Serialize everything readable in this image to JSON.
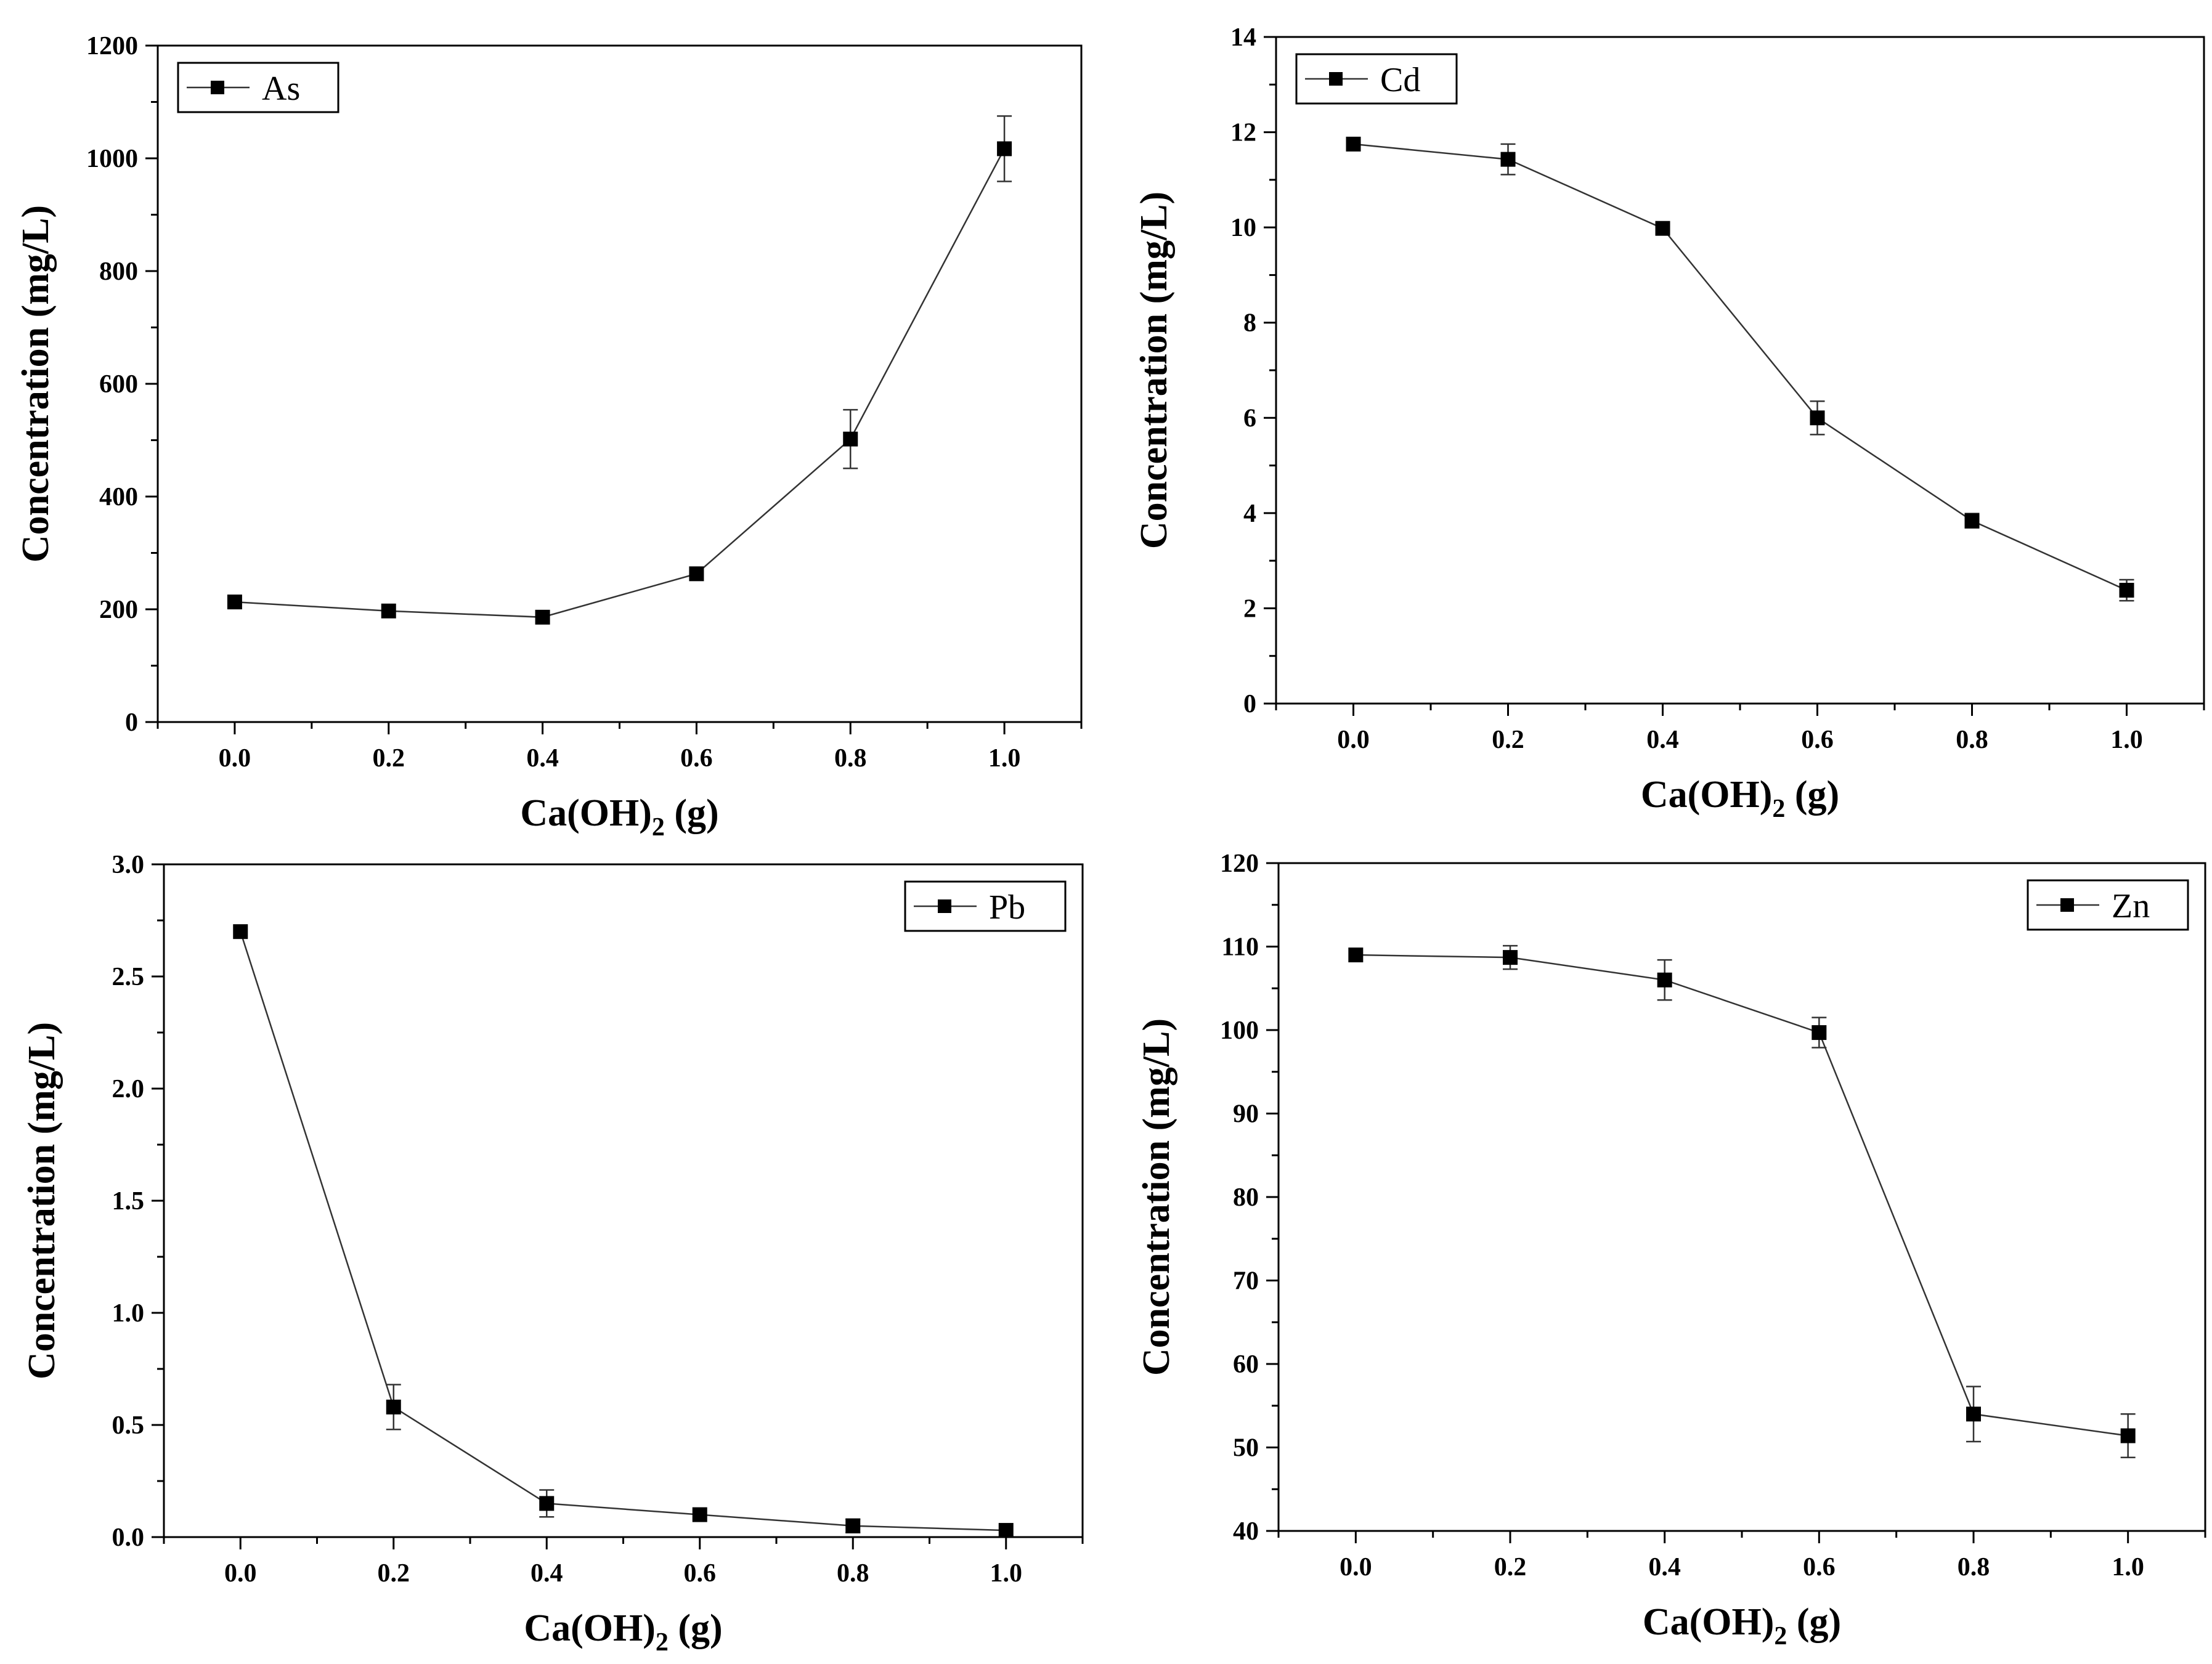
{
  "chart_data": [
    {
      "type": "line",
      "legend": "As",
      "legend_position": "top-left",
      "xlabel_main": "Ca(OH)",
      "xlabel_sub": "2",
      "xlabel_unit": "(g)",
      "ylabel": "Concentration (mg/L)",
      "xlim": [
        -0.1,
        1.1
      ],
      "ylim": [
        0,
        1200
      ],
      "xticks": [
        0.0,
        0.2,
        0.4,
        0.6,
        0.8,
        1.0
      ],
      "xtick_labels": [
        "0.0",
        "0.2",
        "0.4",
        "0.6",
        "0.8",
        "1.0"
      ],
      "yticks": [
        0,
        200,
        400,
        600,
        800,
        1000,
        1200
      ],
      "ytick_labels": [
        "0",
        "200",
        "400",
        "600",
        "800",
        "1000",
        "1200"
      ],
      "x": [
        0.0,
        0.2,
        0.4,
        0.6,
        0.8,
        1.0
      ],
      "y": [
        213,
        197,
        186,
        263,
        502,
        1017
      ],
      "err": [
        0,
        0,
        0,
        0,
        52,
        58
      ]
    },
    {
      "type": "line",
      "legend": "Cd",
      "legend_position": "top-left",
      "xlabel_main": "Ca(OH)",
      "xlabel_sub": "2",
      "xlabel_unit": "(g)",
      "ylabel": "Concentration (mg/L)",
      "xlim": [
        -0.1,
        1.1
      ],
      "ylim": [
        0,
        14
      ],
      "xticks": [
        0.0,
        0.2,
        0.4,
        0.6,
        0.8,
        1.0
      ],
      "xtick_labels": [
        "0.0",
        "0.2",
        "0.4",
        "0.6",
        "0.8",
        "1.0"
      ],
      "yticks": [
        0,
        2,
        4,
        6,
        8,
        10,
        12,
        14
      ],
      "ytick_labels": [
        "0",
        "2",
        "4",
        "6",
        "8",
        "10",
        "12",
        "14"
      ],
      "x": [
        0.0,
        0.2,
        0.4,
        0.6,
        0.8,
        1.0
      ],
      "y": [
        11.75,
        11.43,
        9.98,
        6.0,
        3.84,
        2.38
      ],
      "err": [
        0,
        0.32,
        0,
        0.35,
        0.15,
        0.22
      ]
    },
    {
      "type": "line",
      "legend": "Pb",
      "legend_position": "top-right",
      "xlabel_main": "Ca(OH)",
      "xlabel_sub": "2",
      "xlabel_unit": "(g)",
      "ylabel": "Concentration (mg/L)",
      "xlim": [
        -0.1,
        1.1
      ],
      "ylim": [
        0,
        3.0
      ],
      "xticks": [
        0.0,
        0.2,
        0.4,
        0.6,
        0.8,
        1.0
      ],
      "xtick_labels": [
        "0.0",
        "0.2",
        "0.4",
        "0.6",
        "0.8",
        "1.0"
      ],
      "yticks": [
        0,
        0.5,
        1.0,
        1.5,
        2.0,
        2.5,
        3.0
      ],
      "ytick_labels": [
        "0.0",
        "0.5",
        "1.0",
        "1.5",
        "2.0",
        "2.5",
        "3.0"
      ],
      "x": [
        0.0,
        0.2,
        0.4,
        0.6,
        0.8,
        1.0
      ],
      "y": [
        2.7,
        0.58,
        0.15,
        0.1,
        0.05,
        0.03
      ],
      "err": [
        0,
        0.1,
        0.06,
        0,
        0.03,
        0
      ]
    },
    {
      "type": "line",
      "legend": "Zn",
      "legend_position": "top-right",
      "xlabel_main": "Ca(OH)",
      "xlabel_sub": "2",
      "xlabel_unit": "(g)",
      "ylabel": "Concentration (mg/L)",
      "xlim": [
        -0.1,
        1.1
      ],
      "ylim": [
        40,
        120
      ],
      "xticks": [
        0.0,
        0.2,
        0.4,
        0.6,
        0.8,
        1.0
      ],
      "xtick_labels": [
        "0.0",
        "0.2",
        "0.4",
        "0.6",
        "0.8",
        "1.0"
      ],
      "yticks": [
        40,
        50,
        60,
        70,
        80,
        90,
        100,
        110,
        120
      ],
      "ytick_labels": [
        "40",
        "50",
        "60",
        "70",
        "80",
        "90",
        "100",
        "110",
        "120"
      ],
      "x": [
        0.0,
        0.2,
        0.4,
        0.6,
        0.8,
        1.0
      ],
      "y": [
        109,
        108.7,
        106,
        99.7,
        54,
        51.4
      ],
      "err": [
        0,
        1.4,
        2.4,
        1.8,
        3.3,
        2.6
      ]
    }
  ]
}
